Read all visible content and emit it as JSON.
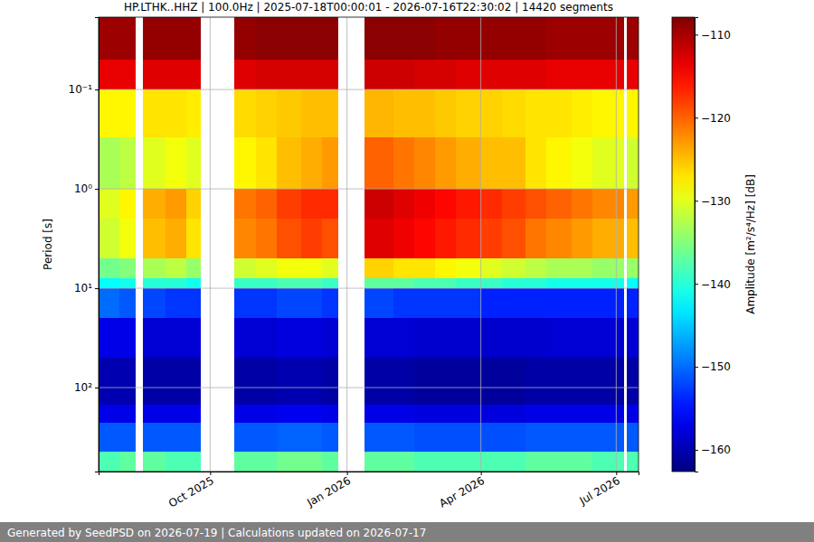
{
  "chart_data": {
    "type": "heatmap",
    "title": "HP.LTHK..HHZ | 100.0Hz | 2025-07-18T00:00:01 - 2026-07-16T22:30:02 | 14420 segments",
    "y_label": "Period [s]",
    "log": "y",
    "grid": true,
    "xlim": [
      "2025-07-18",
      "2026-07-16"
    ],
    "xticks": [
      {
        "value": "2025-10-01",
        "label": "Oct 2025"
      },
      {
        "value": "2026-01-01",
        "label": "Jan 2026"
      },
      {
        "value": "2026-04-01",
        "label": "Apr 2026"
      },
      {
        "value": "2026-07-01",
        "label": "Jul 2026"
      }
    ],
    "ylim": [
      0.0187,
      700
    ],
    "yticks": [
      {
        "value": 0.1,
        "label": "10⁻¹"
      },
      {
        "value": 1,
        "label": "10⁰"
      },
      {
        "value": 10,
        "label": "10¹"
      },
      {
        "value": 100,
        "label": "10²"
      }
    ],
    "x_edges": [
      "2025-07-18",
      "2025-08-01",
      "2025-08-12",
      "2025-08-17",
      "2025-09-01",
      "2025-09-15",
      "2025-09-25",
      "2025-10-17",
      "2025-11-01",
      "2025-11-15",
      "2025-12-01",
      "2025-12-15",
      "2025-12-26",
      "2026-01-13",
      "2026-02-01",
      "2026-02-15",
      "2026-03-01",
      "2026-03-15",
      "2026-04-01",
      "2026-04-15",
      "2026-05-01",
      "2026-05-15",
      "2026-06-01",
      "2026-06-15",
      "2026-07-06",
      "2026-07-08",
      "2026-07-16"
    ],
    "y_edges": [
      0.0187,
      0.05,
      0.1,
      0.3,
      1,
      2,
      5,
      8,
      10,
      20,
      50,
      150,
      226,
      442,
      700
    ],
    "cells": [
      [
        -109.5,
        -109.5,
        null,
        -109,
        -109,
        -109,
        null,
        -109,
        -108.5,
        -108.5,
        -108.5,
        -108.5,
        null,
        -108.5,
        -108.5,
        -108.5,
        -109,
        -109,
        -109,
        -109,
        -109,
        -109.5,
        -109.5,
        -109.5,
        null,
        -109.5
      ],
      [
        -113.5,
        -113.5,
        null,
        -113,
        -113,
        -113,
        null,
        -113,
        -112.5,
        -112.5,
        -112.5,
        -112.5,
        null,
        -112,
        -112,
        -112.5,
        -112.5,
        -113,
        -113,
        -113,
        -113,
        -113.5,
        -113.5,
        -113.5,
        null,
        -113.5
      ],
      [
        -128,
        -128,
        null,
        -127,
        -127,
        -127.5,
        null,
        -126.5,
        -126,
        -125.5,
        -125,
        -125,
        null,
        -124.5,
        -125,
        -125,
        -125.5,
        -126,
        -126,
        -126.5,
        -127,
        -127,
        -127.5,
        -128,
        null,
        -128
      ],
      [
        -133,
        -132,
        null,
        -130,
        -129,
        -130,
        null,
        -128,
        -127,
        -125,
        -124,
        -123,
        null,
        -120,
        -121,
        -122,
        -123,
        -124,
        -125,
        -125,
        -127,
        -128,
        -129,
        -130,
        null,
        -131
      ],
      [
        -130,
        -128,
        null,
        -124,
        -123,
        -126,
        null,
        -121,
        -120,
        -118,
        -117,
        -117,
        null,
        -112,
        -113,
        -114,
        -115,
        -116,
        -117,
        -118,
        -119,
        -120,
        -121,
        -122,
        null,
        -123
      ],
      [
        -131,
        -129,
        null,
        -125,
        -124,
        -127,
        null,
        -122,
        -121,
        -119,
        -118,
        -119,
        null,
        -113,
        -114,
        -115,
        -116,
        -117,
        -118,
        -119,
        -121,
        -122,
        -123,
        -124,
        null,
        -125
      ],
      [
        -136,
        -135,
        null,
        -133,
        -132,
        -134,
        null,
        -131,
        -130,
        -129,
        -129,
        -130,
        null,
        -126,
        -127,
        -127,
        -128,
        -129,
        -130,
        -131,
        -132,
        -133,
        -133,
        -134,
        null,
        -134
      ],
      [
        -142,
        -141,
        null,
        -140,
        -140,
        -141,
        null,
        -139,
        -139,
        -138,
        -138,
        -139,
        null,
        -137,
        -137,
        -138,
        -138,
        -139,
        -139,
        -140,
        -140,
        -141,
        -141,
        -141,
        null,
        -142
      ],
      [
        -150,
        -151,
        null,
        -152,
        -153,
        -153,
        null,
        -153,
        -153,
        -152,
        -152,
        -153,
        null,
        -152,
        -153,
        -153,
        -153,
        -153,
        -154,
        -154,
        -154,
        -154,
        -154,
        -154,
        null,
        -154
      ],
      [
        -157,
        -157,
        null,
        -158,
        -158,
        -158,
        null,
        -158,
        -158,
        -157.5,
        -157.5,
        -158,
        null,
        -158,
        -158,
        -158.5,
        -158.5,
        -158.5,
        -158.5,
        -158.5,
        -158.5,
        -158,
        -158,
        -158,
        null,
        -158
      ],
      [
        -160,
        -160,
        null,
        -160.5,
        -160.5,
        -160.5,
        null,
        -160.5,
        -160.5,
        -160,
        -160,
        -160.5,
        null,
        -160.5,
        -160.5,
        -161,
        -161,
        -161,
        -161,
        -161,
        -160.5,
        -160.5,
        -160.5,
        -160.5,
        null,
        -160.5
      ],
      [
        -157,
        -157,
        null,
        -157,
        -157,
        -157,
        null,
        -157,
        -157,
        -156.5,
        -156.5,
        -157,
        null,
        -157,
        -157,
        -157.5,
        -157.5,
        -157.5,
        -157.5,
        -157.5,
        -157,
        -157,
        -157,
        -157,
        null,
        -157
      ],
      [
        -151,
        -151,
        null,
        -151,
        -151,
        -151,
        null,
        -151,
        -151,
        -150.5,
        -150.5,
        -151,
        null,
        -151,
        -151,
        -151.5,
        -151.5,
        -151.5,
        -151.5,
        -151.5,
        -151,
        -151,
        -151,
        -151,
        null,
        -151
      ],
      [
        -138,
        -137,
        null,
        -137,
        -138,
        -138,
        null,
        -137,
        -137,
        -136,
        -136,
        -137,
        null,
        -137,
        -137,
        -138,
        -138,
        -138,
        -138,
        -138,
        -137,
        -137,
        -137,
        -138,
        null,
        -138
      ]
    ],
    "colorbar": {
      "label": "Amplitude [m²/s⁴/Hz] [dB]",
      "range": [
        -162.6,
        -107.9
      ],
      "ticks": [
        {
          "value": -110,
          "label": "−110"
        },
        {
          "value": -120,
          "label": "−120"
        },
        {
          "value": -130,
          "label": "−130"
        },
        {
          "value": -140,
          "label": "−140"
        },
        {
          "value": -150,
          "label": "−150"
        },
        {
          "value": -160,
          "label": "−160"
        }
      ]
    }
  },
  "footer": "Generated by SeedPSD on 2026-07-19 | Calculations updated on 2026-07-17"
}
